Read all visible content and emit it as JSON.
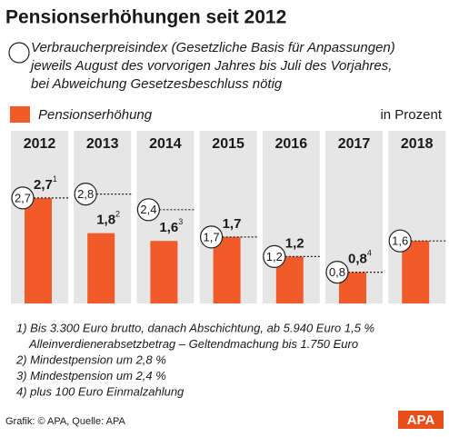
{
  "chart_data": {
    "type": "bar",
    "title": "Pensionserhöhungen seit 2012",
    "unit_label": "in Prozent",
    "categories": [
      "2012",
      "2013",
      "2014",
      "2015",
      "2016",
      "2017",
      "2018"
    ],
    "series": [
      {
        "name": "Pensionserhöhung",
        "color": "#f15a29",
        "values": [
          2.7,
          1.8,
          1.6,
          1.7,
          1.2,
          0.8,
          1.6
        ],
        "value_labels": [
          "2,7",
          "1,8",
          "1,6",
          "1,7",
          "1,2",
          "0,8",
          null
        ],
        "footnote_refs": [
          "1",
          "2",
          "3",
          null,
          null,
          "4",
          null
        ]
      },
      {
        "name": "Verbraucherpreisindex (Gesetzliche Basis für Anpassungen)",
        "name_continued": [
          "jeweils August des vorvorigen Jahres bis Juli des Vorjahres,",
          "bei Abweichung Gesetzesbeschluss nötig"
        ],
        "color": "#ffffff",
        "values": [
          2.7,
          2.8,
          2.4,
          1.7,
          1.2,
          0.8,
          1.6
        ],
        "value_labels": [
          "2,7",
          "2,8",
          "2,4",
          "1,7",
          "1,2",
          "0,8",
          "1,6"
        ]
      }
    ],
    "notes": [
      [
        "1) Bis 3.300 Euro brutto, danach Abschichtung, ab 5.940 Euro 1,5 %",
        "Alleinverdienerabsetzbetrag – Geltendmachung bis 1.750 Euro"
      ],
      [
        "2) Mindestpension um 2,8 %"
      ],
      [
        "3) Mindestpension um 2,4 %"
      ],
      [
        "4) plus 100 Euro Einmalzahlung"
      ]
    ],
    "source": "Grafik: © APA, Quelle: APA",
    "logo": "APA"
  }
}
